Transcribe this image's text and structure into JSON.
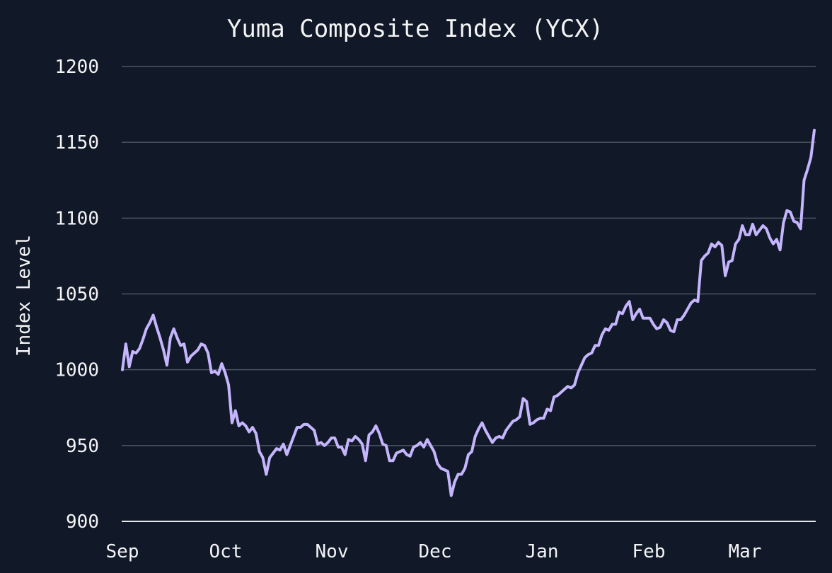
{
  "chart_data": {
    "type": "line",
    "title": "Yuma Composite Index (YCX)",
    "xlabel": "",
    "ylabel": "Index Level",
    "x_ticks": [
      "Sep",
      "Oct",
      "Nov",
      "Dec",
      "Jan",
      "Feb",
      "Mar"
    ],
    "ylim": [
      900,
      1200
    ],
    "yticks": [
      900,
      950,
      1000,
      1050,
      1100,
      1150,
      1200
    ],
    "grid": true,
    "series": [
      {
        "color": "#C4B5FD",
        "values": [
          1000,
          1017,
          1002,
          1012,
          1011,
          1014,
          1020,
          1027,
          1031,
          1036,
          1028,
          1021,
          1013,
          1003,
          1021,
          1027,
          1021,
          1016,
          1017,
          1005,
          1009,
          1011,
          1013,
          1017,
          1016,
          1011,
          998,
          999,
          997,
          1004,
          998,
          990,
          965,
          973,
          963,
          965,
          963,
          959,
          962,
          958,
          946,
          942,
          931,
          942,
          945,
          948,
          947,
          951,
          944,
          950,
          956,
          962,
          962,
          964,
          964,
          962,
          960,
          951,
          952,
          950,
          952,
          955,
          955,
          949,
          949,
          944,
          954,
          953,
          956,
          954,
          951,
          940,
          957,
          959,
          963,
          958,
          951,
          950,
          940,
          940,
          945,
          946,
          947,
          944,
          943,
          949,
          950,
          952,
          949,
          954,
          950,
          946,
          938,
          935,
          934,
          933,
          917,
          926,
          931,
          931,
          935,
          944,
          946,
          956,
          961,
          965,
          960,
          956,
          952,
          955,
          956,
          955,
          960,
          963,
          966,
          967,
          969,
          981,
          979,
          964,
          965,
          967,
          968,
          968,
          974,
          973,
          982,
          983,
          985,
          987,
          989,
          988,
          990,
          998,
          1003,
          1008,
          1010,
          1011,
          1016,
          1016,
          1023,
          1027,
          1026,
          1030,
          1030,
          1038,
          1037,
          1042,
          1045,
          1033,
          1037,
          1040,
          1034,
          1034,
          1034,
          1030,
          1027,
          1028,
          1033,
          1031,
          1026,
          1025,
          1033,
          1033,
          1036,
          1040,
          1044,
          1046,
          1045,
          1072,
          1075,
          1077,
          1083,
          1081,
          1084,
          1082,
          1062,
          1071,
          1072,
          1083,
          1086,
          1095,
          1089,
          1089,
          1096,
          1089,
          1092,
          1095,
          1093,
          1087,
          1083,
          1086,
          1079,
          1097,
          1105,
          1104,
          1098,
          1097,
          1093,
          1125,
          1132,
          1140,
          1158
        ]
      }
    ]
  }
}
